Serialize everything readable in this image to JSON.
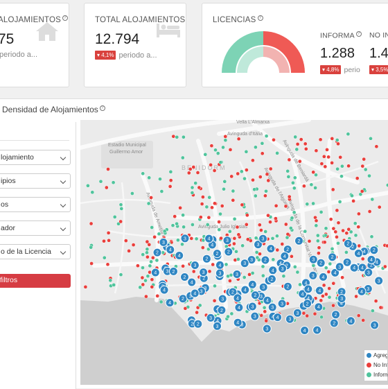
{
  "cards": {
    "alojamientos": {
      "title": "ALOJAMIENTOS",
      "value": "75",
      "sub": "periodo a..."
    },
    "total": {
      "title": "TOTAL ALOJAMIENTOS",
      "value": "12.794",
      "badge": "4,1%",
      "sub": "periodo a..."
    },
    "licencias": {
      "title": "LICENCIAS",
      "informa": {
        "label": "INFORMA",
        "value": "1.288",
        "badge": "4,8%",
        "sub": "perio"
      },
      "no_informa": {
        "label": "NO IN",
        "value": "1.4",
        "badge": "3,5%"
      }
    }
  },
  "panel": {
    "title": "Densidad de Alojamientos"
  },
  "filters": [
    {
      "label": "lojamiento"
    },
    {
      "label": "ipios"
    },
    {
      "label": "os"
    },
    {
      "label": "ador"
    },
    {
      "label": "o de la Licencia"
    }
  ],
  "apply_button": "filtros",
  "map": {
    "labels": [
      {
        "text": "Vella L'Almarxa"
      },
      {
        "text": "Avinguda d'Itàlia"
      },
      {
        "text": "Estadio Municipal"
      },
      {
        "text": "Guillermo Amor"
      },
      {
        "text": "BENIDORM"
      },
      {
        "text": "Avinguda Julio Iglesias"
      },
      {
        "text": "Avinguda de Beniardá"
      },
      {
        "text": "Avinguda de l'Aigüera"
      },
      {
        "text": "Avinguda de la Comunitat Valenciana"
      },
      {
        "text": "Avinguda de Ametlla de Mar"
      }
    ]
  },
  "legend": {
    "items": [
      {
        "label": "Agreg",
        "color": "#2f86c3"
      },
      {
        "label": "No Inf",
        "color": "#ea3e3b"
      },
      {
        "label": "Inform",
        "color": "#4fc49c"
      }
    ]
  },
  "colors": {
    "cluster": "#2f86c3",
    "no_informa": "#ea3e3b",
    "informa": "#4fc49c",
    "accent": "#d63c43"
  }
}
